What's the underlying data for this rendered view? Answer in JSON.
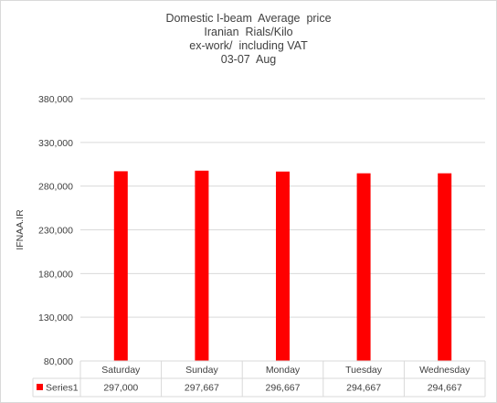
{
  "chart_data": {
    "type": "bar",
    "title_lines": [
      "Domestic I-beam  Average  price",
      "Iranian  Rials/Kilo",
      "ex-work/  including VAT",
      "03-07  Aug"
    ],
    "ylabel": "IFNAA.IR",
    "xlabel": "",
    "ylim": [
      80000,
      380000
    ],
    "y_ticks": [
      80000,
      130000,
      180000,
      230000,
      280000,
      330000,
      380000
    ],
    "y_tick_labels": [
      "80,000",
      "130,000",
      "180,000",
      "230,000",
      "280,000",
      "330,000",
      "380,000"
    ],
    "categories": [
      "Saturday",
      "Sunday",
      "Monday",
      "Tuesday",
      "Wednesday"
    ],
    "series": [
      {
        "name": "Series1",
        "values": [
          297000,
          297667,
          296667,
          294667,
          294667
        ],
        "value_labels": [
          "297,000",
          "297,667",
          "296,667",
          "294,667",
          "294,667"
        ],
        "color": "#ff0000"
      }
    ],
    "grid": true,
    "legend": "data-table",
    "gridline_color": "#d9d9d9"
  }
}
